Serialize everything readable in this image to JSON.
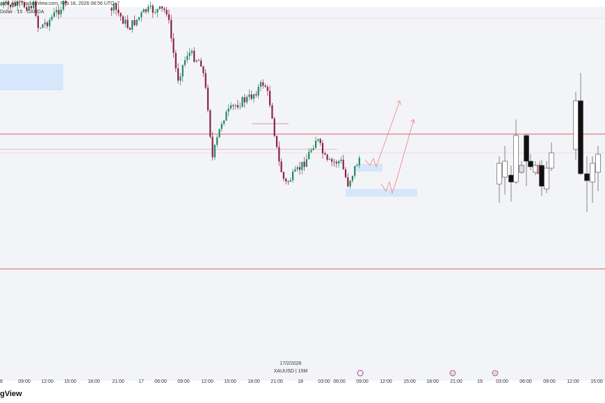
{
  "header": {
    "created": "ated with TradingView.com, Feb 18, 2026 08:56 UTC+7",
    "symbol": "Dollar · 15 · OANDA"
  },
  "x_axis": {
    "labels": [
      "6",
      "09:00",
      "12:00",
      "15:00",
      "18:00",
      "21:00",
      "17",
      "06:00",
      "09:00",
      "12:00",
      "15:00",
      "18:00",
      "21:00",
      "18",
      "03:00",
      "06:00",
      "09:00",
      "12:00",
      "15:00",
      "18:00",
      "21:00",
      "19",
      "03:00",
      "06:00",
      "09:00",
      "12:00",
      "15:00"
    ]
  },
  "center_label": {
    "date": "17/2/2026",
    "symbol": "XAUUSD | 15M"
  },
  "watermark": "gView"
}
